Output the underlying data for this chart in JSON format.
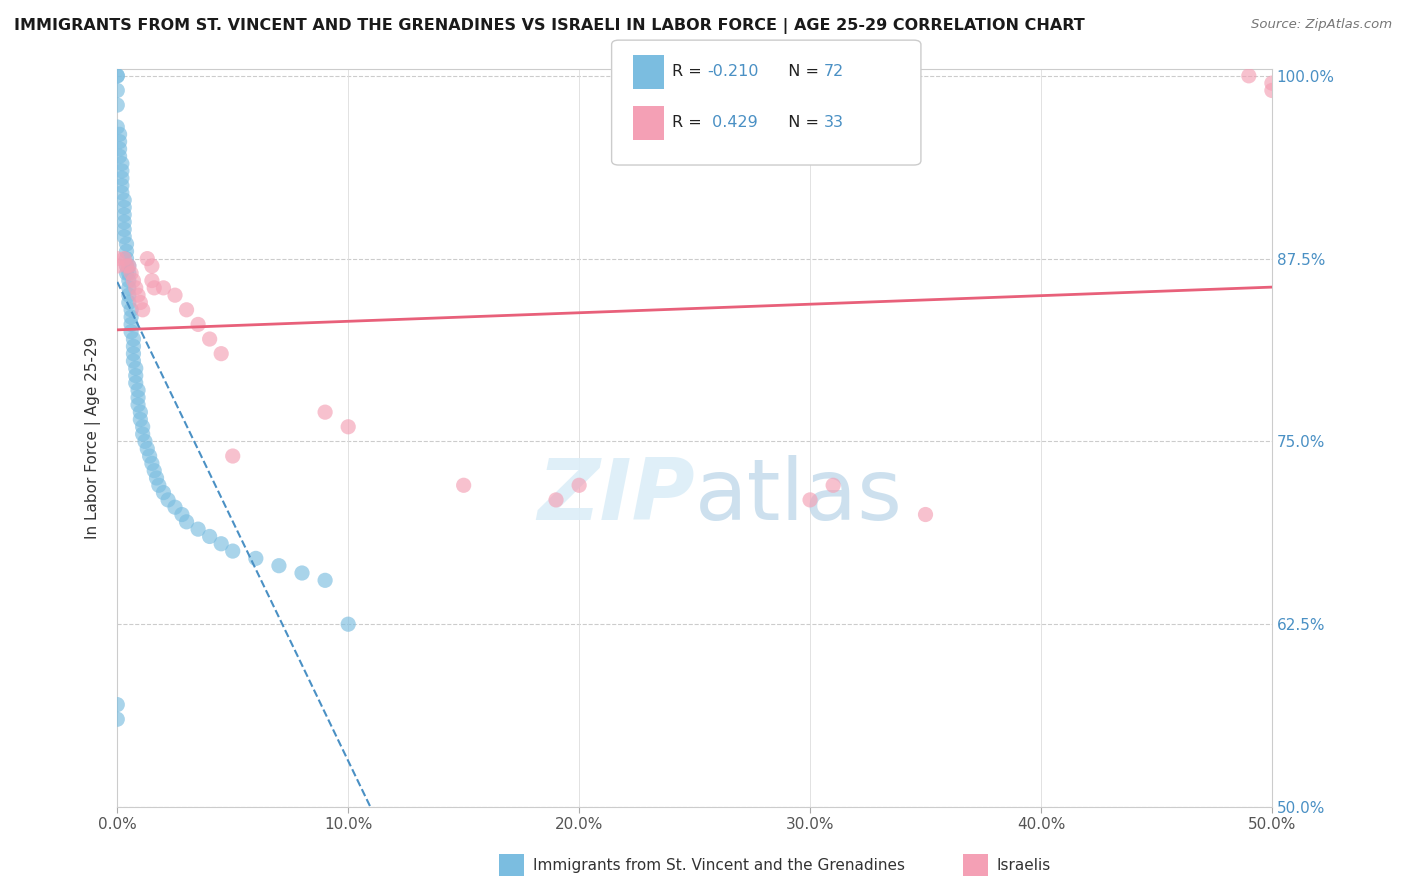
{
  "title": "IMMIGRANTS FROM ST. VINCENT AND THE GRENADINES VS ISRAELI IN LABOR FORCE | AGE 25-29 CORRELATION CHART",
  "source": "Source: ZipAtlas.com",
  "ylabel_label": "In Labor Force | Age 25-29",
  "legend_label_blue": "Immigrants from St. Vincent and the Grenadines",
  "legend_label_pink": "Israelis",
  "R_blue": -0.21,
  "N_blue": 72,
  "R_pink": 0.429,
  "N_pink": 33,
  "blue_color": "#7bbde0",
  "pink_color": "#f4a0b5",
  "blue_line_color": "#4a90c4",
  "pink_line_color": "#e8607a",
  "xmin": 0.0,
  "xmax": 0.5,
  "ymin": 0.5,
  "ymax": 1.005,
  "yticks": [
    0.5,
    0.625,
    0.75,
    0.875,
    1.0
  ],
  "ytick_labels": [
    "50.0%",
    "62.5%",
    "75.0%",
    "87.5%",
    "100.0%"
  ],
  "xticks": [
    0.0,
    0.1,
    0.2,
    0.3,
    0.4,
    0.5
  ],
  "xtick_labels": [
    "0.0%",
    "10.0%",
    "20.0%",
    "30.0%",
    "40.0%",
    "50.0%"
  ],
  "blue_x": [
    0.0,
    0.0,
    0.0,
    0.0,
    0.0,
    0.001,
    0.001,
    0.001,
    0.001,
    0.002,
    0.002,
    0.002,
    0.002,
    0.002,
    0.003,
    0.003,
    0.003,
    0.003,
    0.003,
    0.003,
    0.004,
    0.004,
    0.004,
    0.004,
    0.004,
    0.005,
    0.005,
    0.005,
    0.005,
    0.005,
    0.005,
    0.006,
    0.006,
    0.006,
    0.006,
    0.007,
    0.007,
    0.007,
    0.007,
    0.008,
    0.008,
    0.008,
    0.009,
    0.009,
    0.009,
    0.01,
    0.01,
    0.011,
    0.011,
    0.012,
    0.013,
    0.014,
    0.015,
    0.016,
    0.017,
    0.018,
    0.02,
    0.022,
    0.025,
    0.028,
    0.03,
    0.035,
    0.04,
    0.045,
    0.05,
    0.06,
    0.07,
    0.08,
    0.09,
    0.1,
    0.0,
    0.0
  ],
  "blue_y": [
    1.0,
    1.0,
    0.99,
    0.98,
    0.965,
    0.96,
    0.955,
    0.95,
    0.945,
    0.94,
    0.935,
    0.93,
    0.925,
    0.92,
    0.915,
    0.91,
    0.905,
    0.9,
    0.895,
    0.89,
    0.885,
    0.88,
    0.875,
    0.87,
    0.865,
    0.87,
    0.865,
    0.86,
    0.855,
    0.85,
    0.845,
    0.84,
    0.835,
    0.83,
    0.825,
    0.82,
    0.815,
    0.81,
    0.805,
    0.8,
    0.795,
    0.79,
    0.785,
    0.78,
    0.775,
    0.77,
    0.765,
    0.76,
    0.755,
    0.75,
    0.745,
    0.74,
    0.735,
    0.73,
    0.725,
    0.72,
    0.715,
    0.71,
    0.705,
    0.7,
    0.695,
    0.69,
    0.685,
    0.68,
    0.675,
    0.67,
    0.665,
    0.66,
    0.655,
    0.625,
    0.57,
    0.56
  ],
  "pink_x": [
    0.0,
    0.0,
    0.003,
    0.004,
    0.005,
    0.006,
    0.007,
    0.008,
    0.009,
    0.01,
    0.011,
    0.013,
    0.015,
    0.015,
    0.016,
    0.02,
    0.025,
    0.03,
    0.035,
    0.04,
    0.045,
    0.05,
    0.09,
    0.1,
    0.15,
    0.19,
    0.2,
    0.3,
    0.31,
    0.35,
    0.49,
    0.5,
    0.5
  ],
  "pink_y": [
    0.875,
    0.87,
    0.875,
    0.87,
    0.87,
    0.865,
    0.86,
    0.855,
    0.85,
    0.845,
    0.84,
    0.875,
    0.87,
    0.86,
    0.855,
    0.855,
    0.85,
    0.84,
    0.83,
    0.82,
    0.81,
    0.74,
    0.77,
    0.76,
    0.72,
    0.71,
    0.72,
    0.71,
    0.72,
    0.7,
    1.0,
    0.995,
    0.99
  ]
}
